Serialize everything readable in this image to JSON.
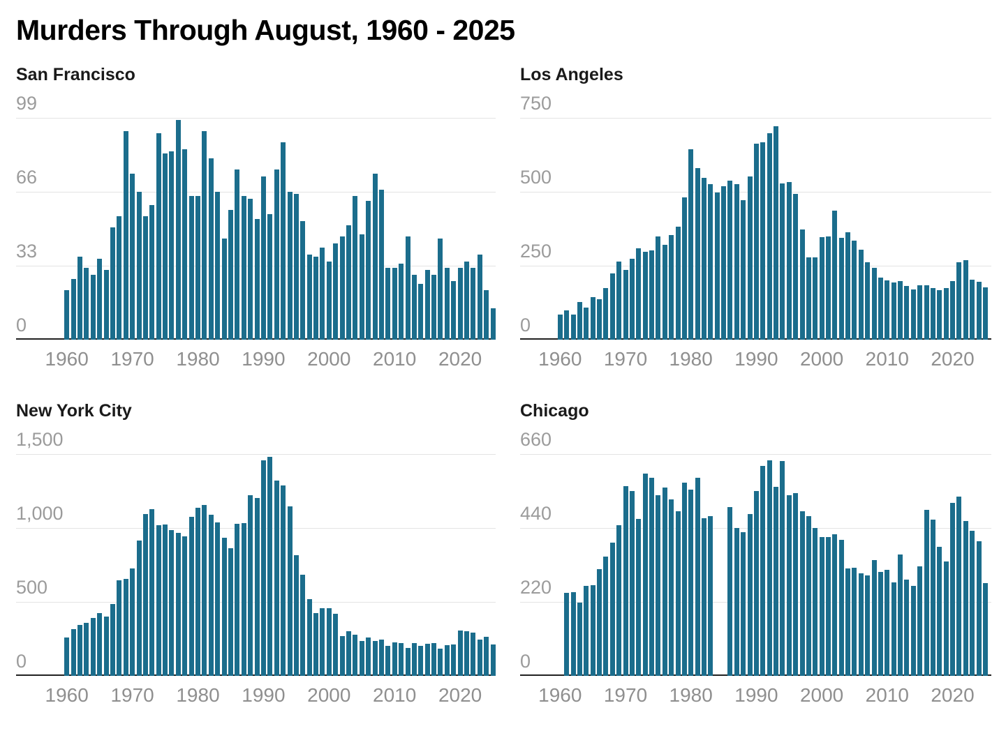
{
  "title": "Murders Through August, 1960 - 2025",
  "colors": {
    "bar": "#1b6d8c",
    "axis_line": "#212121",
    "gridline": "#e3e3e3",
    "tick_label": "#9b9b9b",
    "panel_title": "#1a1a1a"
  },
  "xtick_labels": [
    "1960",
    "1970",
    "1980",
    "1990",
    "2000",
    "2010",
    "2020"
  ],
  "chart_data": [
    {
      "type": "bar",
      "title": "San Francisco",
      "x_range": [
        1960,
        2025
      ],
      "ylim": [
        0,
        99
      ],
      "ytick_labels": [
        "99",
        "66",
        "33",
        "0"
      ],
      "grid": true,
      "legend": "none",
      "note_missing_years": [],
      "values": [
        22,
        27,
        37,
        32,
        29,
        36,
        31,
        50,
        55,
        93,
        74,
        66,
        55,
        60,
        92,
        83,
        84,
        98,
        85,
        64,
        64,
        93,
        81,
        66,
        45,
        58,
        76,
        64,
        63,
        54,
        73,
        56,
        76,
        88,
        66,
        65,
        53,
        38,
        37,
        41,
        35,
        43,
        46,
        51,
        64,
        47,
        62,
        74,
        67,
        32,
        32,
        34,
        46,
        29,
        25,
        31,
        29,
        45,
        32,
        26,
        32,
        35,
        32,
        38,
        22,
        14
      ]
    },
    {
      "type": "bar",
      "title": "Los Angeles",
      "x_range": [
        1960,
        2025
      ],
      "ylim": [
        0,
        750
      ],
      "ytick_labels": [
        "750",
        "500",
        "250",
        "0"
      ],
      "grid": true,
      "legend": "none",
      "note_missing_years": [],
      "values": [
        86,
        98,
        86,
        127,
        109,
        143,
        136,
        175,
        225,
        263,
        236,
        274,
        310,
        298,
        301,
        349,
        321,
        354,
        383,
        482,
        643,
        580,
        546,
        527,
        497,
        518,
        537,
        527,
        472,
        551,
        663,
        667,
        698,
        722,
        529,
        533,
        493,
        372,
        278,
        278,
        347,
        349,
        436,
        344,
        364,
        335,
        305,
        262,
        244,
        211,
        201,
        193,
        199,
        182,
        170,
        184,
        184,
        175,
        167,
        175,
        199,
        262,
        270,
        203,
        196,
        176
      ]
    },
    {
      "type": "bar",
      "title": "New York City",
      "x_range": [
        1960,
        2025
      ],
      "ylim": [
        0,
        1500
      ],
      "ytick_labels": [
        "1,500",
        "1,000",
        "500",
        "0"
      ],
      "grid": true,
      "legend": "none",
      "note_missing_years": [],
      "values": [
        258,
        318,
        343,
        357,
        392,
        423,
        403,
        485,
        646,
        654,
        726,
        915,
        1092,
        1126,
        1018,
        1023,
        988,
        966,
        942,
        1077,
        1135,
        1154,
        1088,
        1036,
        935,
        865,
        1028,
        1034,
        1223,
        1203,
        1458,
        1480,
        1320,
        1288,
        1146,
        818,
        683,
        517,
        426,
        458,
        458,
        418,
        268,
        303,
        277,
        238,
        261,
        237,
        246,
        201,
        228,
        221,
        190,
        222,
        201,
        218,
        223,
        186,
        208,
        212,
        308,
        300,
        292,
        243,
        264,
        212
      ]
    },
    {
      "type": "bar",
      "title": "Chicago",
      "x_range": [
        1960,
        2025
      ],
      "ylim": [
        0,
        660
      ],
      "ytick_labels": [
        "660",
        "440",
        "220",
        "0"
      ],
      "grid": true,
      "legend": "none",
      "note_missing_years": [
        1960,
        1984,
        1985
      ],
      "values": [
        null,
        247,
        250,
        218,
        267,
        269,
        317,
        355,
        396,
        448,
        565,
        550,
        467,
        601,
        590,
        538,
        561,
        525,
        489,
        575,
        554,
        589,
        469,
        475,
        null,
        null,
        502,
        441,
        427,
        482,
        550,
        624,
        642,
        562,
        640,
        538,
        543,
        489,
        475,
        441,
        414,
        412,
        421,
        405,
        320,
        322,
        305,
        298,
        345,
        310,
        315,
        279,
        362,
        286,
        267,
        325,
        493,
        464,
        384,
        340,
        515,
        533,
        460,
        431,
        401,
        276
      ]
    }
  ]
}
